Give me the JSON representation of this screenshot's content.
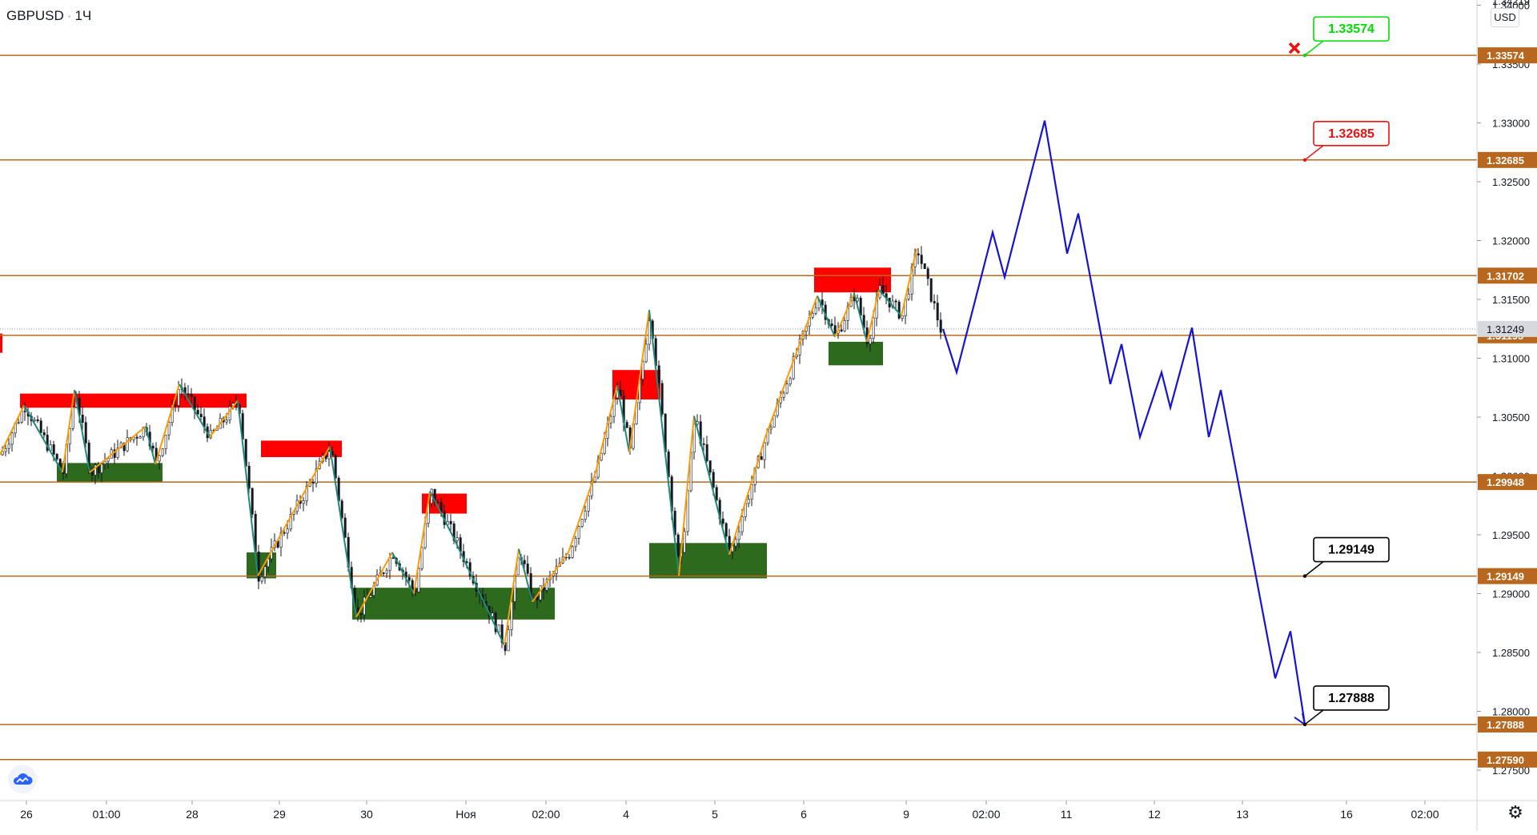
{
  "header": {
    "symbol": "GBPUSD",
    "interval": "1Ч"
  },
  "currency": "USD",
  "logo_icon": "tradingview-cloud-icon",
  "settings_icon": "gear-icon",
  "colors": {
    "background": "#ffffff",
    "level_line": "#b8681e",
    "level_badge": "#b8681e",
    "current_price_badge": "#d7d9df",
    "supply_zone": "#ff0000",
    "demand_zone": "#2d6a1e",
    "zigzag_up": "#ff9900",
    "zigzag_down": "#1f8a76",
    "projection": "#1414d2",
    "target_green": "#00dd00",
    "target_red": "#ee1111",
    "target_black": "#000000",
    "cross": "#ee1111"
  },
  "chart_data": {
    "type": "line",
    "title": "GBPUSD · 1Ч",
    "ylim": [
      1.2735,
      1.3425
    ],
    "y_ticks": [
      "1.34000",
      "1.33500",
      "1.33000",
      "1.32500",
      "1.32000",
      "1.31500",
      "1.31000",
      "1.30500",
      "1.30000",
      "1.29500",
      "1.29000",
      "1.28500",
      "1.28000",
      "1.27500"
    ],
    "y_top_partial_label": "1.34219",
    "x_tick_labels": [
      "26",
      "01:00",
      "28",
      "29",
      "30",
      "Ноя",
      "02:00",
      "4",
      "5",
      "6",
      "9",
      "02:00",
      "11",
      "12",
      "13",
      "16",
      "02:00"
    ],
    "horizontal_levels": [
      {
        "label": "1.33574",
        "value": 1.33574
      },
      {
        "label": "1.32685",
        "value": 1.32685
      },
      {
        "label": "1.31702",
        "value": 1.31702
      },
      {
        "label": "1.31195",
        "value": 1.31195
      },
      {
        "label": "1.29948",
        "value": 1.29948
      },
      {
        "label": "1.29149",
        "value": 1.29149
      },
      {
        "label": "1.27888",
        "value": 1.27888
      },
      {
        "label": "1.27590",
        "value": 1.2759
      }
    ],
    "current_price": {
      "label": "1.31249",
      "value": 1.31249
    },
    "target_labels": [
      {
        "label": "1.33574",
        "value": 1.33574,
        "style": "green"
      },
      {
        "label": "1.32685",
        "value": 1.32685,
        "style": "red"
      },
      {
        "label": "1.29149",
        "value": 1.29149,
        "style": "black"
      },
      {
        "label": "1.27888",
        "value": 1.27888,
        "style": "black"
      }
    ],
    "supply_zones": [
      {
        "x_from": 25,
        "x_to": 308,
        "y_low": 1.3058,
        "y_high": 1.307
      },
      {
        "x_from": 326,
        "x_to": 427,
        "y_low": 1.3016,
        "y_high": 1.303
      },
      {
        "x_from": 527,
        "x_to": 583,
        "y_low": 1.2968,
        "y_high": 1.2985
      },
      {
        "x_from": 765,
        "x_to": 825,
        "y_low": 1.3065,
        "y_high": 1.309
      },
      {
        "x_from": 1017,
        "x_to": 1113,
        "y_low": 1.3156,
        "y_high": 1.3177
      }
    ],
    "demand_zones": [
      {
        "x_from": 71,
        "x_to": 203,
        "y_low": 1.2995,
        "y_high": 1.3011
      },
      {
        "x_from": 308,
        "x_to": 345,
        "y_low": 1.2913,
        "y_high": 1.2935
      },
      {
        "x_from": 440,
        "x_to": 693,
        "y_low": 1.2878,
        "y_high": 1.2905
      },
      {
        "x_from": 811,
        "x_to": 958,
        "y_low": 1.2913,
        "y_high": 1.2943
      },
      {
        "x_from": 1035,
        "x_to": 1103,
        "y_low": 1.3094,
        "y_high": 1.3114
      }
    ],
    "zigzag": [
      [
        0,
        1.3018
      ],
      [
        30,
        1.306
      ],
      [
        78,
        1.3003
      ],
      [
        93,
        1.3073
      ],
      [
        112,
        1.3003
      ],
      [
        182,
        1.3042
      ],
      [
        194,
        1.301
      ],
      [
        224,
        1.3078
      ],
      [
        262,
        1.3033
      ],
      [
        297,
        1.3064
      ],
      [
        322,
        1.2915
      ],
      [
        412,
        1.3025
      ],
      [
        445,
        1.288
      ],
      [
        490,
        1.2935
      ],
      [
        517,
        1.29
      ],
      [
        537,
        1.2987
      ],
      [
        567,
        1.2947
      ],
      [
        630,
        1.2856
      ],
      [
        648,
        1.2938
      ],
      [
        665,
        1.2893
      ],
      [
        710,
        1.2935
      ],
      [
        744,
        1.3003
      ],
      [
        771,
        1.3077
      ],
      [
        786,
        1.302
      ],
      [
        811,
        1.3141
      ],
      [
        848,
        1.2915
      ],
      [
        867,
        1.3051
      ],
      [
        911,
        1.2933
      ],
      [
        956,
        1.3033
      ],
      [
        1021,
        1.3153
      ],
      [
        1043,
        1.3118
      ],
      [
        1067,
        1.3155
      ],
      [
        1083,
        1.3114
      ],
      [
        1098,
        1.3158
      ],
      [
        1126,
        1.3136
      ],
      [
        1145,
        1.3193
      ]
    ],
    "projection": [
      [
        1178,
        1.31249
      ],
      [
        1195,
        1.3088
      ],
      [
        1240,
        1.3207
      ],
      [
        1255,
        1.3169
      ],
      [
        1305,
        1.3302
      ],
      [
        1333,
        1.3189
      ],
      [
        1347,
        1.3223
      ],
      [
        1387,
        1.3078
      ],
      [
        1401,
        1.3112
      ],
      [
        1424,
        1.3033
      ],
      [
        1451,
        1.3088
      ],
      [
        1462,
        1.3058
      ],
      [
        1489,
        1.3126
      ],
      [
        1510,
        1.3033
      ],
      [
        1525,
        1.3073
      ],
      [
        1593,
        1.2828
      ],
      [
        1612,
        1.2868
      ],
      [
        1630,
        1.27888
      ]
    ],
    "price_path_end_x": 1178,
    "last_price": 1.31249
  }
}
